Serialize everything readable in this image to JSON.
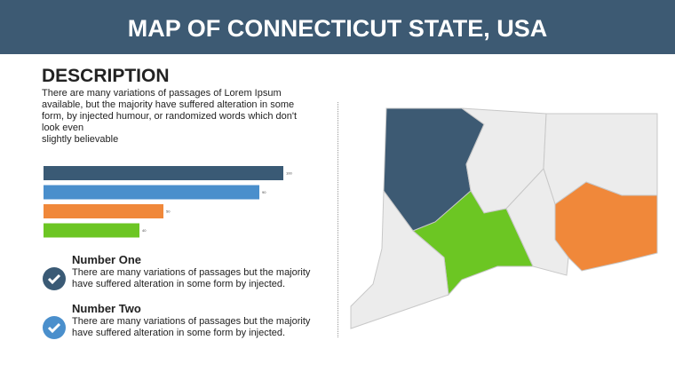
{
  "header": {
    "title": "MAP OF CONNECTICUT STATE, USA"
  },
  "description": {
    "heading": "DESCRIPTION",
    "text": "There are many variations of passages of Lorem Ipsum available, but the majority have suffered alteration in some form, by injected humour, or randomized words which don't look even\nslightly believable"
  },
  "chart_data": {
    "type": "bar",
    "values": [
      100,
      90,
      50,
      40
    ],
    "colors": [
      "#3a5a75",
      "#4a8fcc",
      "#f0883a",
      "#6cc623"
    ]
  },
  "features": [
    {
      "title": "Number One",
      "text": "There are many variations of passages but the majority have  suffered alteration in some form by injected."
    },
    {
      "title": "Number Two",
      "text": "There are many variations of passages but the majority have  suffered alteration in some form by injected."
    }
  ]
}
